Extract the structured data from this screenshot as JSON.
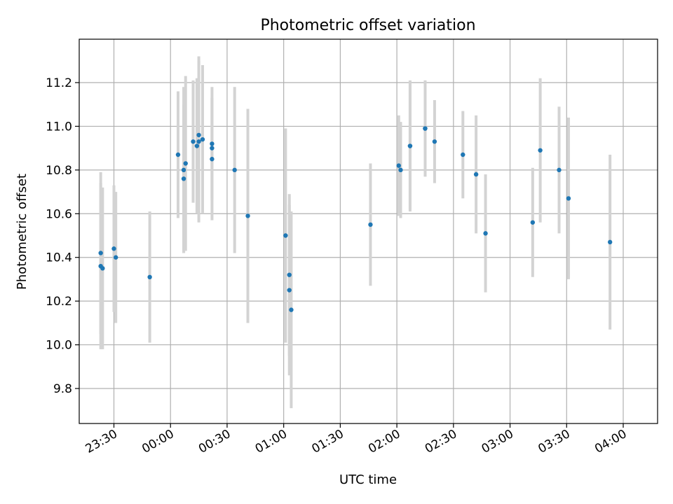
{
  "chart_data": {
    "type": "scatter",
    "title": "Photometric offset variation",
    "xlabel": "UTC time",
    "ylabel": "Photometric offset",
    "x_ticks": [
      "23:30",
      "00:00",
      "00:30",
      "01:00",
      "01:30",
      "02:00",
      "02:30",
      "03:00",
      "03:30",
      "04:00"
    ],
    "y_ticks": [
      "9.8",
      "10.0",
      "10.2",
      "10.4",
      "10.6",
      "10.8",
      "11.0",
      "11.2"
    ],
    "grid": true,
    "colors": {
      "points": "#1f77b4",
      "errorbars": "#d3d3d3",
      "grid": "#b0b0b0"
    },
    "points": [
      {
        "t": "23:23",
        "y": 10.42,
        "err": 0.37
      },
      {
        "t": "23:23",
        "y": 10.36,
        "err": 0.38
      },
      {
        "t": "23:24",
        "y": 10.35,
        "err": 0.37
      },
      {
        "t": "23:30",
        "y": 10.44,
        "err": 0.29
      },
      {
        "t": "23:31",
        "y": 10.4,
        "err": 0.3
      },
      {
        "t": "23:49",
        "y": 10.31,
        "err": 0.3
      },
      {
        "t": "00:04",
        "y": 10.87,
        "err": 0.29
      },
      {
        "t": "00:07",
        "y": 10.8,
        "err": 0.38
      },
      {
        "t": "00:07",
        "y": 10.76,
        "err": 0.34
      },
      {
        "t": "00:08",
        "y": 10.83,
        "err": 0.4
      },
      {
        "t": "00:12",
        "y": 10.93,
        "err": 0.28
      },
      {
        "t": "00:14",
        "y": 10.91,
        "err": 0.31
      },
      {
        "t": "00:15",
        "y": 10.93,
        "err": 0.37
      },
      {
        "t": "00:15",
        "y": 10.96,
        "err": 0.36
      },
      {
        "t": "00:17",
        "y": 10.94,
        "err": 0.34
      },
      {
        "t": "00:22",
        "y": 10.92,
        "err": 0.26
      },
      {
        "t": "00:22",
        "y": 10.9,
        "err": 0.23
      },
      {
        "t": "00:22",
        "y": 10.85,
        "err": 0.28
      },
      {
        "t": "00:34",
        "y": 10.8,
        "err": 0.38
      },
      {
        "t": "00:41",
        "y": 10.59,
        "err": 0.49
      },
      {
        "t": "01:01",
        "y": 10.5,
        "err": 0.49
      },
      {
        "t": "01:03",
        "y": 10.32,
        "err": 0.37
      },
      {
        "t": "01:03",
        "y": 10.25,
        "err": 0.39
      },
      {
        "t": "01:04",
        "y": 10.16,
        "err": 0.45
      },
      {
        "t": "01:46",
        "y": 10.55,
        "err": 0.28
      },
      {
        "t": "02:01",
        "y": 10.82,
        "err": 0.23
      },
      {
        "t": "02:02",
        "y": 10.8,
        "err": 0.22
      },
      {
        "t": "02:07",
        "y": 10.91,
        "err": 0.29
      },
      {
        "t": "02:07",
        "y": 10.91,
        "err": 0.3
      },
      {
        "t": "02:15",
        "y": 10.99,
        "err": 0.22
      },
      {
        "t": "02:15",
        "y": 10.99,
        "err": 0.22
      },
      {
        "t": "02:20",
        "y": 10.93,
        "err": 0.19
      },
      {
        "t": "02:35",
        "y": 10.87,
        "err": 0.2
      },
      {
        "t": "02:42",
        "y": 10.78,
        "err": 0.27
      },
      {
        "t": "02:47",
        "y": 10.51,
        "err": 0.27
      },
      {
        "t": "03:12",
        "y": 10.56,
        "err": 0.25
      },
      {
        "t": "03:16",
        "y": 10.89,
        "err": 0.33
      },
      {
        "t": "03:26",
        "y": 10.8,
        "err": 0.29
      },
      {
        "t": "03:31",
        "y": 10.67,
        "err": 0.37
      },
      {
        "t": "03:53",
        "y": 10.47,
        "err": 0.4
      }
    ]
  }
}
